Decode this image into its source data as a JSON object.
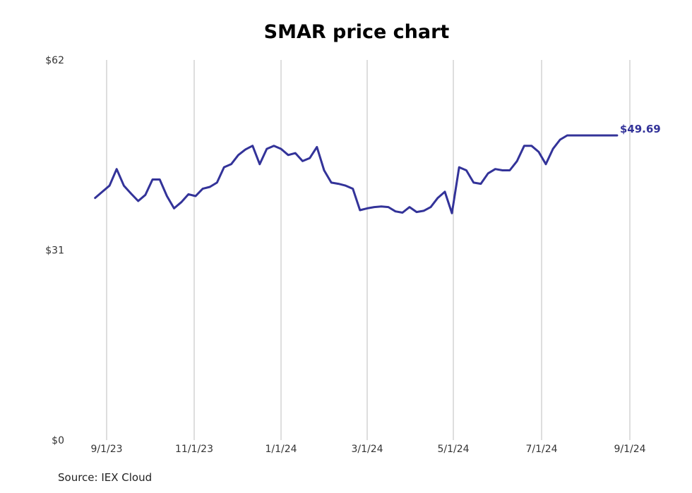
{
  "chart_data": {
    "type": "line",
    "title": "SMAR price chart",
    "xlabel": "",
    "ylabel": "",
    "source": "Source: IEX Cloud",
    "ylim": [
      0,
      62
    ],
    "y_ticks": [
      "$0",
      "$31",
      "$62"
    ],
    "x_ticks": [
      "9/1/23",
      "11/1/23",
      "1/1/24",
      "3/1/24",
      "5/1/24",
      "7/1/24",
      "9/1/24"
    ],
    "grid": "vertical",
    "last_label": "$49.69",
    "line_color": "#333399",
    "series": [
      {
        "x": [
          "2023-08-24",
          "2023-08-29",
          "2023-09-03",
          "2023-09-08",
          "2023-09-13",
          "2023-09-18",
          "2023-09-23",
          "2023-09-28",
          "2023-10-03",
          "2023-10-08",
          "2023-10-13",
          "2023-10-18",
          "2023-10-23",
          "2023-10-28",
          "2023-11-02",
          "2023-11-07",
          "2023-11-12",
          "2023-11-17",
          "2023-11-22",
          "2023-11-27",
          "2023-12-02",
          "2023-12-07",
          "2023-12-12",
          "2023-12-17",
          "2023-12-22",
          "2023-12-27",
          "2024-01-01",
          "2024-01-06",
          "2024-01-11",
          "2024-01-16",
          "2024-01-21",
          "2024-01-26",
          "2024-01-31",
          "2024-02-05",
          "2024-02-10",
          "2024-02-15",
          "2024-02-20",
          "2024-02-25",
          "2024-03-01",
          "2024-03-06",
          "2024-03-11",
          "2024-03-16",
          "2024-03-21",
          "2024-03-26",
          "2024-03-31",
          "2024-04-05",
          "2024-04-10",
          "2024-04-15",
          "2024-04-20",
          "2024-04-25",
          "2024-04-30",
          "2024-05-05",
          "2024-05-10",
          "2024-05-15",
          "2024-05-20",
          "2024-05-25",
          "2024-05-30",
          "2024-06-04",
          "2024-06-09",
          "2024-06-14",
          "2024-06-19",
          "2024-06-24",
          "2024-06-29",
          "2024-07-04",
          "2024-07-09",
          "2024-07-14",
          "2024-07-19",
          "2024-07-24",
          "2024-07-29",
          "2024-08-03",
          "2024-08-08",
          "2024-08-13",
          "2024-08-18",
          "2024-08-23"
        ],
        "values": [
          39.5,
          40.5,
          41.5,
          44.2,
          41.5,
          40.2,
          39.0,
          40.0,
          42.5,
          42.5,
          39.8,
          37.8,
          38.8,
          40.1,
          39.8,
          41.0,
          41.3,
          42.0,
          44.5,
          45.0,
          46.5,
          47.4,
          48.0,
          45.0,
          47.5,
          48.0,
          47.5,
          46.5,
          46.8,
          45.5,
          46.0,
          47.8,
          44.0,
          42.0,
          41.8,
          41.5,
          41.0,
          37.5,
          37.8,
          38.0,
          38.1,
          38.0,
          37.3,
          37.1,
          38.0,
          37.2,
          37.4,
          38.0,
          39.5,
          40.5,
          37.0,
          44.5,
          44.0,
          42.0,
          41.8,
          43.5,
          44.2,
          44.0,
          44.0,
          45.5,
          48.0,
          48.0,
          47.0,
          45.0,
          47.5,
          49.0,
          49.69,
          49.69,
          49.69,
          49.69,
          49.69,
          49.69,
          49.69,
          49.69
        ]
      }
    ]
  }
}
